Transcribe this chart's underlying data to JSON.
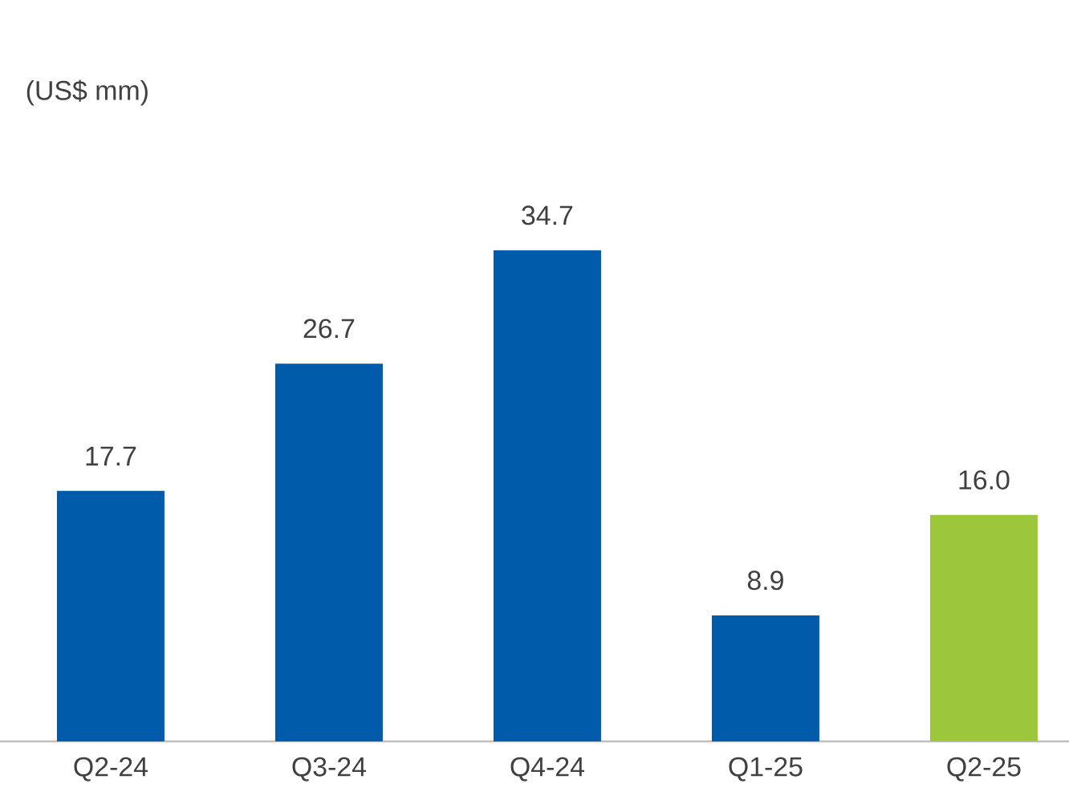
{
  "chart_data": {
    "type": "bar",
    "subtitle": "(US$ mm)",
    "categories": [
      "Q2-24",
      "Q3-24",
      "Q4-24",
      "Q1-25",
      "Q2-25"
    ],
    "values": [
      17.7,
      26.7,
      34.7,
      8.9,
      16.0
    ],
    "colors": [
      "#005baa",
      "#005baa",
      "#005baa",
      "#005baa",
      "#9dc73b"
    ],
    "value_labels": [
      "17.7",
      "26.7",
      "34.7",
      "8.9",
      "16.0"
    ]
  }
}
